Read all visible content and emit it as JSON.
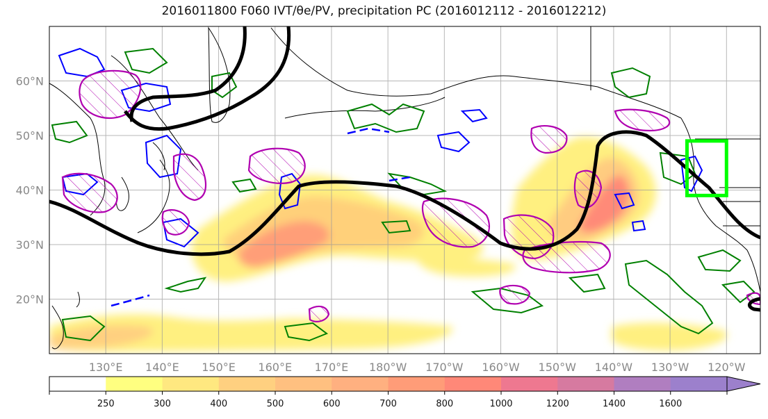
{
  "title": "2016011800 F060 IVT/θe/PV, precipitation PC (2016012112 - 2016012212)",
  "map": {
    "lon_range": [
      120,
      246
    ],
    "lat_range": [
      10,
      70
    ],
    "lat_ticks": [
      {
        "label": "60°N",
        "value": 60
      },
      {
        "label": "50°N",
        "value": 50
      },
      {
        "label": "40°N",
        "value": 40
      },
      {
        "label": "30°N",
        "value": 30
      },
      {
        "label": "20°N",
        "value": 20
      }
    ],
    "lon_ticks": [
      {
        "label": "130°E",
        "value": 130
      },
      {
        "label": "140°E",
        "value": 140
      },
      {
        "label": "150°E",
        "value": 150
      },
      {
        "label": "160°E",
        "value": 160
      },
      {
        "label": "170°E",
        "value": 170
      },
      {
        "label": "180°W",
        "value": 180
      },
      {
        "label": "170°W",
        "value": 190
      },
      {
        "label": "160°W",
        "value": 200
      },
      {
        "label": "150°W",
        "value": 210
      },
      {
        "label": "140°W",
        "value": 220
      },
      {
        "label": "130°W",
        "value": 230
      },
      {
        "label": "120°W",
        "value": 240
      }
    ],
    "gridlines": true,
    "target_box": {
      "lon": [
        233,
        240
      ],
      "lat": [
        39,
        49
      ],
      "color": "#00ff00"
    },
    "colors": {
      "pv_contour": "#000000",
      "theta_e_positive": "#008000",
      "theta_e_negative": "#0000ff",
      "precip_pc": "#b000b0"
    }
  },
  "colorbar": {
    "bounds": [
      "250",
      "300",
      "400",
      "500",
      "600",
      "700",
      "800",
      "1000",
      "1200",
      "1400",
      "1600"
    ],
    "colors": [
      "#ffffff",
      "#ffff80",
      "#ffe880",
      "#ffd080",
      "#ffc080",
      "#ffb080",
      "#ff9c78",
      "#ff8878",
      "#ee7890",
      "#d67aa0",
      "#b07ec0",
      "#9c80cc"
    ],
    "extend": "max"
  }
}
